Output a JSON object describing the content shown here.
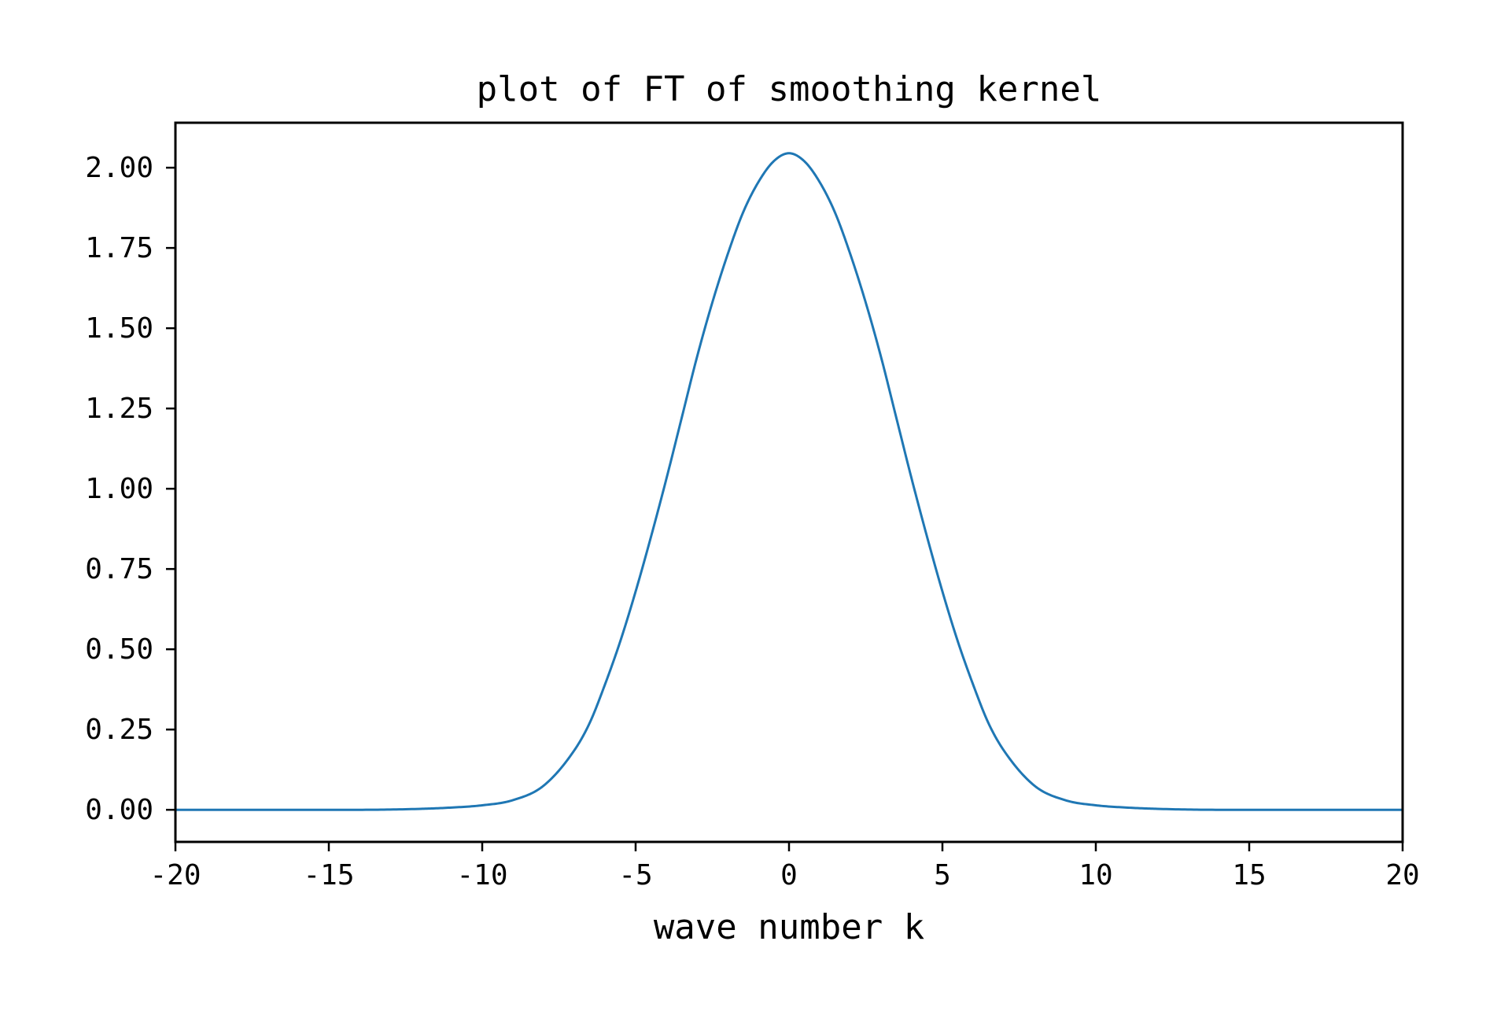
{
  "chart_data": {
    "type": "line",
    "title": "plot of FT of smoothing kernel",
    "xlabel": "wave number k",
    "ylabel": "",
    "xlim": [
      -20,
      20
    ],
    "ylim": [
      -0.1,
      2.14
    ],
    "grid": false,
    "legend": "none",
    "x_ticks": [
      -20,
      -15,
      -10,
      -5,
      0,
      5,
      10,
      15,
      20
    ],
    "x_tick_labels": [
      "-20",
      "-15",
      "-10",
      "-5",
      "0",
      "5",
      "10",
      "15",
      "20"
    ],
    "y_ticks": [
      0.0,
      0.25,
      0.5,
      0.75,
      1.0,
      1.25,
      1.5,
      1.75,
      2.0
    ],
    "y_tick_labels": [
      "0.00",
      "0.25",
      "0.50",
      "0.75",
      "1.00",
      "1.25",
      "1.50",
      "1.75",
      "2.00"
    ],
    "series": [
      {
        "color": "#1f77b4",
        "x": [
          -20,
          -14,
          -12,
          -11,
          -10,
          -9,
          -8,
          -7,
          -6.5,
          -6,
          -5.5,
          -5,
          -4.5,
          -4,
          -3.5,
          -3,
          -2.5,
          -2,
          -1.5,
          -1,
          -0.5,
          0,
          0.5,
          1,
          1.5,
          2,
          2.5,
          3,
          3.5,
          4,
          4.5,
          5,
          5.5,
          6,
          6.5,
          7,
          8,
          9,
          10,
          11,
          12,
          14,
          20
        ],
        "y": [
          0.0,
          0.0,
          0.003,
          0.007,
          0.014,
          0.03,
          0.075,
          0.185,
          0.27,
          0.39,
          0.525,
          0.68,
          0.85,
          1.03,
          1.22,
          1.41,
          1.58,
          1.73,
          1.86,
          1.955,
          2.02,
          2.045,
          2.02,
          1.955,
          1.86,
          1.73,
          1.58,
          1.41,
          1.22,
          1.03,
          0.85,
          0.68,
          0.525,
          0.39,
          0.27,
          0.185,
          0.075,
          0.03,
          0.014,
          0.007,
          0.003,
          0.0,
          0.0
        ]
      }
    ]
  }
}
